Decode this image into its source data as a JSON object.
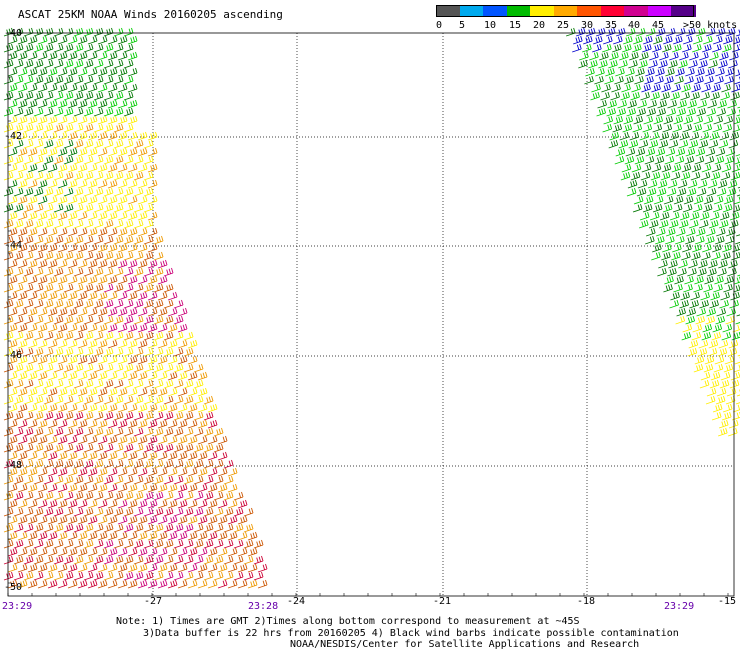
{
  "title": "ASCAT 25KM NOAA Winds 20160205 ascending",
  "legend": {
    "colors": [
      "#555555",
      "#00aaee",
      "#0055ff",
      "#00bb00",
      "#ffee00",
      "#ffaa00",
      "#ff5500",
      "#ff0033",
      "#d00090",
      "#cc00ff",
      "#550088"
    ],
    "labels": [
      "0",
      "5",
      "10",
      "15",
      "20",
      "25",
      "30",
      "35",
      "40",
      "45",
      ">50 knots"
    ]
  },
  "lat_labels": [
    "-40",
    "-42",
    "-44",
    "-46",
    "-48",
    "-50"
  ],
  "lon_labels": [
    "-27",
    "-24",
    "-21",
    "-18",
    "-15"
  ],
  "times": [
    "23:29",
    "23:28",
    "23:29"
  ],
  "notes": [
    "Note: 1) Times are GMT 2)Times along bottom correspond to measurement at ~45S",
    "3)Data buffer is 22 hrs from 20160205 4) Black wind barbs indicate possible contamination",
    "NOAA/NESDIS/Center for Satellite Applications and Research"
  ],
  "barb_palette": {
    "dark_green": "#007700",
    "green": "#00cc00",
    "blue": "#0000cc",
    "yellow": "#ffee00",
    "orange": "#ee9900",
    "dark_orange": "#cc5500",
    "crimson": "#cc0033",
    "magenta": "#cc0077"
  }
}
